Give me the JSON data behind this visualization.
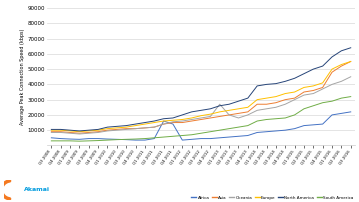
{
  "ylabel": "Average Peak Connection Speed (kbps)",
  "ylim": [
    0,
    90000
  ],
  "yticks": [
    0,
    10000,
    20000,
    30000,
    40000,
    50000,
    60000,
    70000,
    80000,
    90000
  ],
  "quarters": [
    "Q3 2008",
    "Q4 2008",
    "Q1 2009",
    "Q2 2009",
    "Q3 2009",
    "Q4 2009",
    "Q1 2010",
    "Q2 2010",
    "Q3 2010",
    "Q4 2010",
    "Q1 2011",
    "Q2 2011",
    "Q3 2011",
    "Q4 2011",
    "Q1 2012",
    "Q2 2012",
    "Q3 2012",
    "Q4 2012",
    "Q1 2013",
    "Q2 2013",
    "Q3 2013",
    "Q4 2013",
    "Q1 2014",
    "Q2 2014",
    "Q3 2014",
    "Q4 2014",
    "Q1 2015",
    "Q2 2015",
    "Q3 2015",
    "Q4 2015",
    "Q1 2016",
    "Q2 2016",
    "Q3 2016"
  ],
  "series": {
    "Africa": {
      "color": "#4472c4",
      "values": [
        5000,
        4500,
        4200,
        4000,
        4500,
        4500,
        4200,
        4000,
        3800,
        3500,
        3500,
        4500,
        16000,
        14000,
        3500,
        4000,
        4500,
        4500,
        5000,
        5500,
        6000,
        6500,
        8500,
        9000,
        9500,
        10000,
        11000,
        13000,
        13500,
        14000,
        20000,
        21000,
        22000
      ]
    },
    "Asia": {
      "color": "#ed7d31",
      "values": [
        9000,
        9000,
        8500,
        8000,
        8500,
        9000,
        10000,
        10500,
        11000,
        11000,
        11500,
        12000,
        14000,
        15000,
        15000,
        16000,
        17000,
        18000,
        19000,
        20000,
        21000,
        22000,
        27000,
        27000,
        28000,
        30000,
        31000,
        35000,
        36000,
        38000,
        48000,
        52000,
        55000
      ]
    },
    "Oceania": {
      "color": "#a5a5a5",
      "values": [
        8500,
        8500,
        8000,
        7500,
        8000,
        8500,
        9500,
        10000,
        10500,
        11000,
        11500,
        12000,
        14000,
        15500,
        16000,
        17000,
        18000,
        19000,
        27000,
        20000,
        18000,
        20000,
        23000,
        24000,
        25000,
        27000,
        30000,
        33000,
        34000,
        37000,
        40000,
        42000,
        45000
      ]
    },
    "Europe": {
      "color": "#ffc000",
      "values": [
        10000,
        10000,
        9500,
        9000,
        9500,
        10000,
        11000,
        11500,
        12000,
        13000,
        14000,
        15000,
        16000,
        16500,
        17000,
        18000,
        19500,
        20500,
        22000,
        23000,
        24000,
        25000,
        30000,
        31000,
        32000,
        34000,
        35000,
        38000,
        39000,
        41000,
        50000,
        53000,
        55000
      ]
    },
    "North America": {
      "color": "#264478",
      "values": [
        10500,
        10500,
        10000,
        9500,
        10000,
        10500,
        12000,
        12500,
        13000,
        14000,
        15000,
        16000,
        17500,
        18000,
        20000,
        22000,
        23000,
        24000,
        26000,
        27000,
        29000,
        31000,
        39000,
        40000,
        40500,
        42000,
        44000,
        47000,
        50000,
        52000,
        58000,
        62000,
        64000
      ]
    },
    "South America": {
      "color": "#70ad47",
      "values": [
        3000,
        3000,
        3000,
        2800,
        3000,
        3200,
        3500,
        3800,
        4000,
        4200,
        4500,
        5000,
        5500,
        6000,
        6500,
        7000,
        8000,
        9000,
        10000,
        11000,
        12000,
        13000,
        16000,
        17000,
        17500,
        18000,
        20000,
        24000,
        26000,
        28000,
        29000,
        31000,
        32000
      ]
    }
  },
  "background_color": "#ffffff",
  "grid_color": "#d9d9d9",
  "legend_order": [
    "Africa",
    "Asia",
    "Oceania",
    "Europe",
    "North America",
    "South America"
  ],
  "akamai_text_color": "#009bde",
  "akamai_arc_color": "#f47920"
}
